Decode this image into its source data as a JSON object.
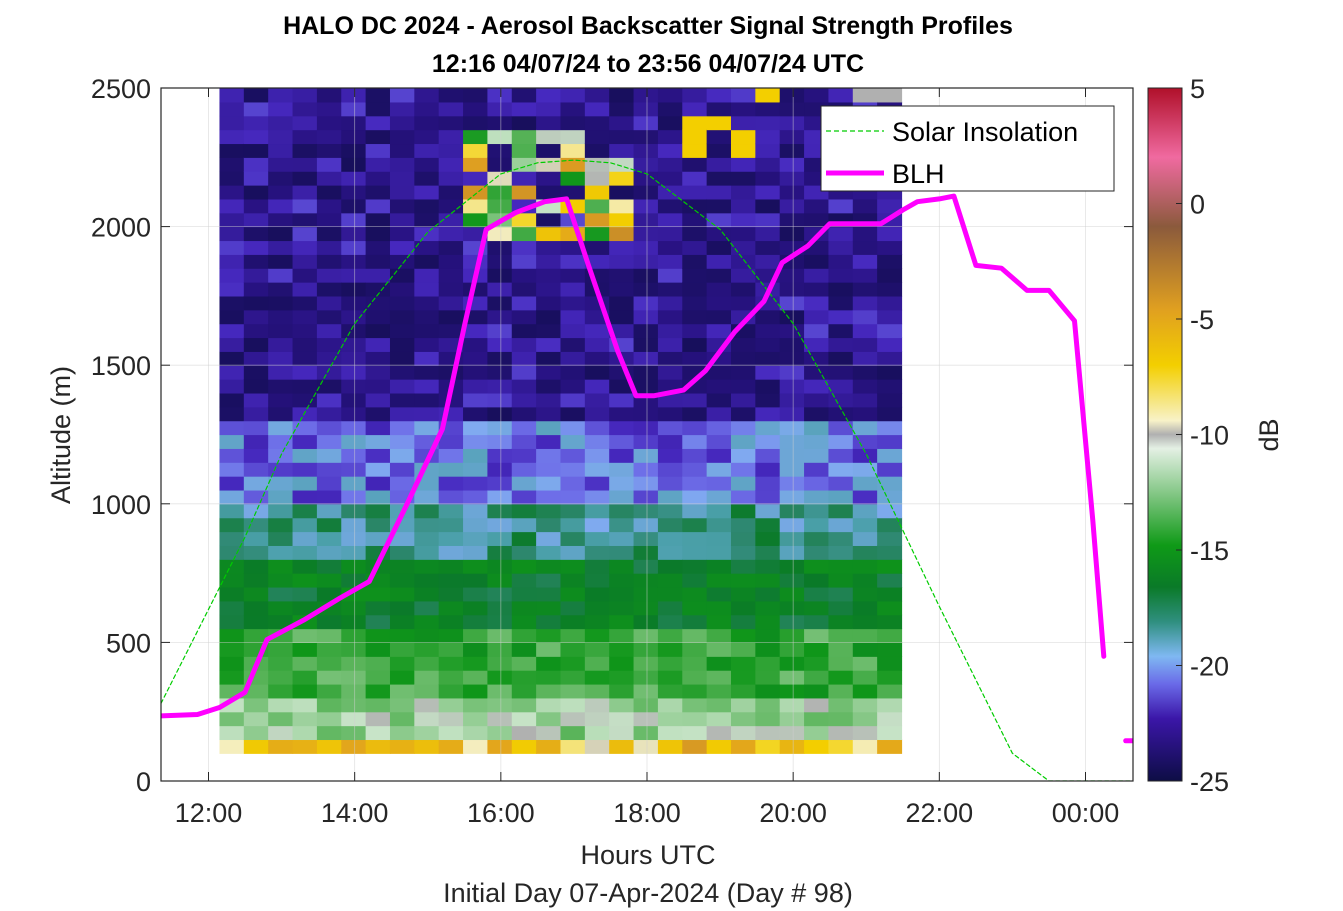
{
  "chart_data": {
    "type": "heatmap",
    "title_line1": "HALO DC 2024 - Aerosol Backscatter Signal Strength Profiles",
    "title_line2": "12:16 04/07/24 to 23:56 04/07/24  UTC",
    "xlabel": "Hours UTC",
    "xlabel2": "Initial Day 07-Apr-2024 (Day # 98)",
    "ylabel": "Altitude (m)",
    "colorbar_label": "dB",
    "xlim": [
      11.35,
      24.65
    ],
    "ylim": [
      0,
      2500
    ],
    "clim": [
      -25,
      5
    ],
    "x_ticks": [
      12,
      14,
      16,
      18,
      20,
      22,
      24
    ],
    "x_tick_labels": [
      "12:00",
      "14:00",
      "16:00",
      "18:00",
      "20:00",
      "22:00",
      "00:00"
    ],
    "y_ticks": [
      0,
      500,
      1000,
      1500,
      2000,
      2500
    ],
    "y_tick_labels": [
      "0",
      "500",
      "1000",
      "1500",
      "2000",
      "2500"
    ],
    "colorbar_ticks": [
      5,
      0,
      -5,
      -10,
      -15,
      -20,
      -25
    ],
    "colorbar_tick_labels": [
      "5",
      "0",
      "-5",
      "-10",
      "-15",
      "-20",
      "-25"
    ],
    "grid": true,
    "legend_location": "top-right",
    "series": [
      {
        "name": "Solar Insolation",
        "style": "dashed",
        "color": "#00cc00",
        "x": [
          11.35,
          12.5,
          13.0,
          14.0,
          15.0,
          16.0,
          16.5,
          17.0,
          17.5,
          18.0,
          19.0,
          20.0,
          21.0,
          22.0,
          23.0,
          23.5,
          23.85,
          24.2,
          24.65
        ],
        "y": [
          280,
          880,
          1180,
          1650,
          1980,
          2190,
          2230,
          2240,
          2230,
          2190,
          1990,
          1650,
          1180,
          630,
          100,
          0,
          0,
          0,
          0
        ]
      },
      {
        "name": "BLH",
        "style": "solid",
        "color": "#ff00ff",
        "x": [
          11.35,
          11.85,
          12.15,
          12.5,
          12.8,
          13.3,
          13.8,
          14.2,
          14.7,
          15.2,
          15.5,
          15.8,
          16.2,
          16.6,
          16.9,
          17.2,
          17.6,
          17.85,
          18.1,
          18.5,
          18.8,
          19.2,
          19.6,
          19.85,
          20.2,
          20.5,
          21.0,
          21.2,
          21.5,
          21.7,
          22.0,
          22.2,
          22.5,
          22.85,
          23.2,
          23.5,
          23.85,
          24.1,
          24.25
        ],
        "y": [
          235,
          240,
          265,
          320,
          510,
          580,
          660,
          720,
          990,
          1270,
          1640,
          1990,
          2050,
          2090,
          2100,
          1860,
          1550,
          1390,
          1390,
          1410,
          1480,
          1620,
          1730,
          1870,
          1930,
          2010,
          2010,
          2010,
          2060,
          2090,
          2100,
          2110,
          1860,
          1850,
          1770,
          1770,
          1660,
          940,
          450
        ]
      },
      {
        "name": "BLH",
        "style": "solid",
        "color": "#ff00ff",
        "x": [
          24.55,
          24.65
        ],
        "y": [
          145,
          145
        ]
      }
    ],
    "heatmap": {
      "x_start_hours": 12.15,
      "x_step_hours": 0.3333,
      "y_step_m": 50,
      "columns": 28,
      "units": "dB",
      "description_of_values": "gridded backscatter signal strength; surface row about -6 dB, near-surface -11 to -14 dB, 300-800 m about -15 to -17 dB, 800-1300 m about -19 to -21 dB, above about -22 to -24 dB with strong returns (-10 to 0 dB) near 2000-2300 m around 15:20-17:30 UTC"
    }
  }
}
